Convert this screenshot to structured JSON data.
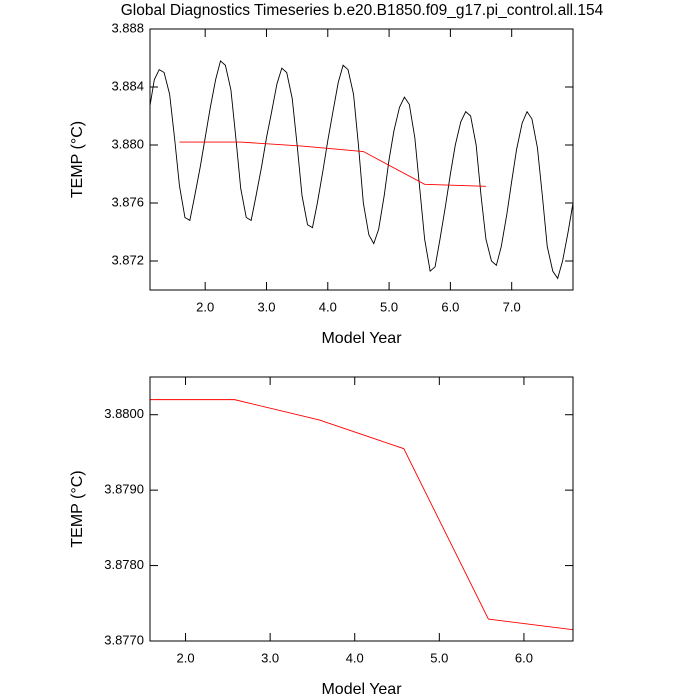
{
  "chart_data": [
    {
      "type": "line",
      "title": "Global Diagnostics Timeseries b.e20.B1850.f09_g17.pi_control.all.154",
      "xlabel": "Model Year",
      "ylabel": "TEMP (°C)",
      "xlim": [
        1.1,
        8.0
      ],
      "ylim": [
        3.87,
        3.888
      ],
      "xticks": [
        {
          "value": 2,
          "label": "2.0"
        },
        {
          "value": 3,
          "label": "3.0"
        },
        {
          "value": 4,
          "label": "4.0"
        },
        {
          "value": 5,
          "label": "5.0"
        },
        {
          "value": 6,
          "label": "6.0"
        },
        {
          "value": 7,
          "label": "7.0"
        }
      ],
      "yticks": [
        3.872,
        3.876,
        {
          "value": 3.88,
          "label": "3.880"
        },
        3.884,
        3.888
      ],
      "series": [
        {
          "color": "#000000",
          "x": [
            1.08,
            1.17,
            1.25,
            1.33,
            1.42,
            1.5,
            1.58,
            1.67,
            1.75,
            1.83,
            1.92,
            2.0,
            2.08,
            2.17,
            2.25,
            2.33,
            2.42,
            2.5,
            2.58,
            2.67,
            2.75,
            2.83,
            2.92,
            3.0,
            3.08,
            3.17,
            3.25,
            3.33,
            3.42,
            3.5,
            3.58,
            3.67,
            3.75,
            3.83,
            3.92,
            4.0,
            4.08,
            4.17,
            4.25,
            4.33,
            4.42,
            4.5,
            4.58,
            4.67,
            4.75,
            4.83,
            4.92,
            5.0,
            5.08,
            5.17,
            5.25,
            5.33,
            5.42,
            5.5,
            5.58,
            5.67,
            5.75,
            5.83,
            5.92,
            6.0,
            6.08,
            6.17,
            6.25,
            6.33,
            6.42,
            6.5,
            6.58,
            6.67,
            6.75,
            6.83,
            6.92,
            7.0,
            7.08,
            7.17,
            7.25,
            7.33,
            7.42,
            7.5,
            7.58,
            7.67,
            7.75,
            7.83,
            7.92,
            8.0
          ],
          "values": [
            3.8822,
            3.8845,
            3.8852,
            3.885,
            3.8835,
            3.8805,
            3.8772,
            3.875,
            3.8748,
            3.8765,
            3.8785,
            3.8805,
            3.8825,
            3.8845,
            3.8858,
            3.8855,
            3.8838,
            3.8805,
            3.877,
            3.875,
            3.8748,
            3.8765,
            3.8785,
            3.8805,
            3.8822,
            3.8842,
            3.8853,
            3.885,
            3.8832,
            3.88,
            3.8765,
            3.8745,
            3.8743,
            3.876,
            3.8782,
            3.8803,
            3.8822,
            3.8843,
            3.8855,
            3.8852,
            3.8835,
            3.88,
            3.876,
            3.8738,
            3.8732,
            3.8742,
            3.8765,
            3.879,
            3.881,
            3.8826,
            3.8833,
            3.8828,
            3.8805,
            3.877,
            3.8735,
            3.8713,
            3.8716,
            3.8735,
            3.8758,
            3.878,
            3.88,
            3.8816,
            3.8823,
            3.882,
            3.88,
            3.8765,
            3.8735,
            3.872,
            3.8717,
            3.873,
            3.8752,
            3.8775,
            3.8797,
            3.8815,
            3.8823,
            3.8818,
            3.8798,
            3.8765,
            3.873,
            3.8713,
            3.8708,
            3.872,
            3.874,
            3.876
          ]
        },
        {
          "color": "#ff0000",
          "x": [
            1.58,
            2.58,
            3.58,
            4.58,
            5.58,
            6.58
          ],
          "values": [
            3.8802,
            3.8802,
            3.87993,
            3.87955,
            3.87729,
            3.87715
          ]
        }
      ]
    },
    {
      "type": "line",
      "xlabel": "Model Year",
      "ylabel": "TEMP (°C)",
      "xlim": [
        1.58,
        6.58
      ],
      "ylim": [
        3.877,
        3.8805
      ],
      "xticks": [
        {
          "value": 2,
          "label": "2.0"
        },
        {
          "value": 3,
          "label": "3.0"
        },
        {
          "value": 4,
          "label": "4.0"
        },
        {
          "value": 5,
          "label": "5.0"
        },
        {
          "value": 6,
          "label": "6.0"
        }
      ],
      "yticks": [
        {
          "value": 3.877,
          "label": "3.8770"
        },
        {
          "value": 3.878,
          "label": "3.8780"
        },
        {
          "value": 3.879,
          "label": "3.8790"
        },
        {
          "value": 3.88,
          "label": "3.8800"
        }
      ],
      "series": [
        {
          "color": "#ff0000",
          "x": [
            1.58,
            2.58,
            3.58,
            4.58,
            5.58,
            6.58
          ],
          "values": [
            3.8802,
            3.8802,
            3.87993,
            3.87955,
            3.87729,
            3.87715
          ]
        }
      ]
    }
  ]
}
